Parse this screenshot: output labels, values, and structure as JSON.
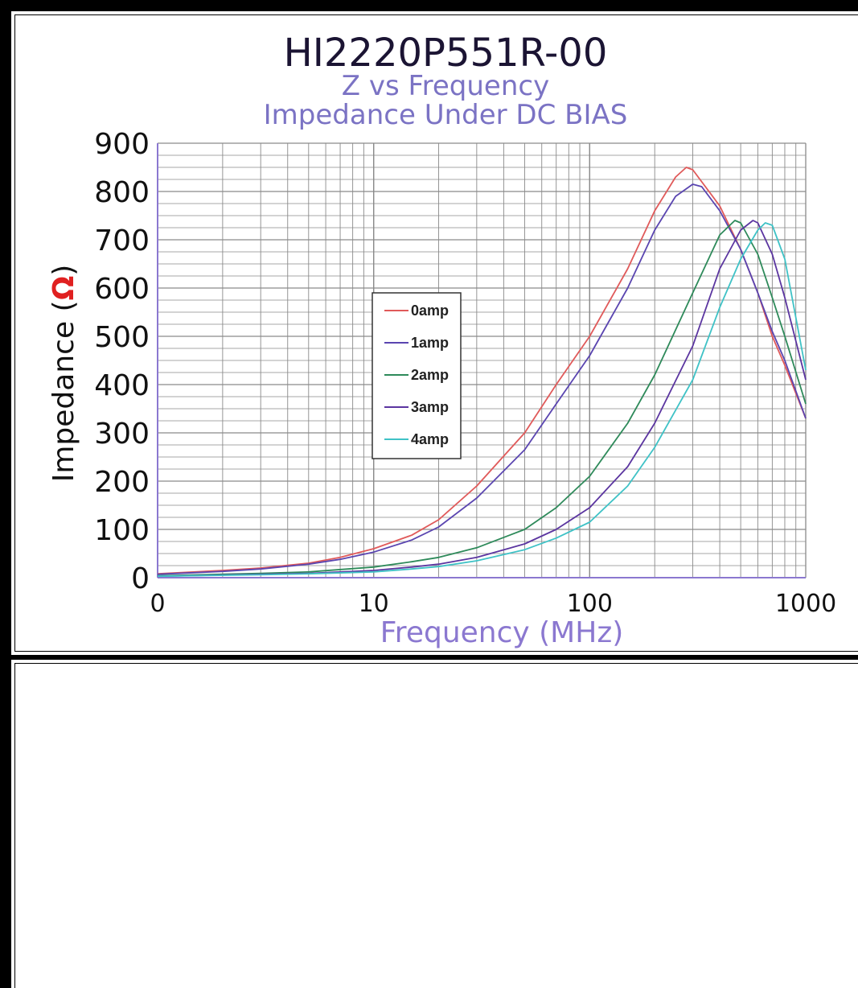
{
  "chart_data": {
    "type": "line",
    "title": "HI2220P551R-00",
    "subtitle_1": "Z vs Frequency",
    "subtitle_2": "Impedance Under DC BIAS",
    "xlabel": "Frequency (MHz)",
    "ylabel_prefix": "Impedance (",
    "ylabel_symbol": "Ω",
    "ylabel_suffix": ")",
    "x_scale": "log",
    "xlim": [
      1,
      1000
    ],
    "ylim": [
      0,
      900
    ],
    "x_tick_labels": [
      "0",
      "10",
      "100",
      "1000"
    ],
    "y_tick_labels": [
      "0",
      "100",
      "200",
      "300",
      "400",
      "500",
      "600",
      "700",
      "800",
      "900"
    ],
    "grid": true,
    "legend_position": "center-left",
    "series": [
      {
        "name": "0amp",
        "color": "#e05a5a",
        "x": [
          1,
          2,
          3,
          5,
          7,
          10,
          15,
          20,
          30,
          50,
          70,
          100,
          150,
          200,
          250,
          280,
          300,
          400,
          500,
          600,
          700,
          800,
          1000
        ],
        "y": [
          8,
          15,
          20,
          30,
          42,
          60,
          88,
          120,
          190,
          300,
          400,
          500,
          640,
          760,
          830,
          850,
          845,
          770,
          680,
          590,
          500,
          440,
          330
        ]
      },
      {
        "name": "1amp",
        "color": "#5a45b0",
        "x": [
          1,
          2,
          3,
          5,
          7,
          10,
          15,
          20,
          30,
          50,
          70,
          100,
          150,
          200,
          250,
          300,
          330,
          400,
          500,
          600,
          700,
          800,
          1000
        ],
        "y": [
          7,
          13,
          18,
          28,
          38,
          53,
          78,
          105,
          165,
          265,
          360,
          460,
          600,
          720,
          790,
          815,
          810,
          760,
          680,
          590,
          510,
          450,
          330
        ]
      },
      {
        "name": "2amp",
        "color": "#2e8a5a",
        "x": [
          1,
          3,
          5,
          10,
          15,
          20,
          30,
          50,
          70,
          100,
          150,
          200,
          300,
          400,
          470,
          500,
          600,
          700,
          800,
          1000
        ],
        "y": [
          4,
          9,
          12,
          22,
          33,
          42,
          62,
          100,
          145,
          210,
          320,
          420,
          590,
          710,
          740,
          735,
          670,
          580,
          500,
          360
        ]
      },
      {
        "name": "3amp",
        "color": "#5b35a0",
        "x": [
          1,
          3,
          5,
          10,
          15,
          20,
          30,
          50,
          70,
          100,
          150,
          200,
          300,
          400,
          500,
          570,
          600,
          700,
          800,
          1000
        ],
        "y": [
          3,
          7,
          9,
          15,
          22,
          28,
          42,
          70,
          100,
          145,
          230,
          320,
          480,
          640,
          720,
          740,
          735,
          670,
          580,
          410
        ]
      },
      {
        "name": "4amp",
        "color": "#3fc2c6",
        "x": [
          1,
          3,
          5,
          10,
          15,
          20,
          30,
          50,
          70,
          100,
          150,
          200,
          300,
          400,
          500,
          600,
          650,
          700,
          800,
          1000
        ],
        "y": [
          3,
          6,
          8,
          12,
          18,
          23,
          35,
          58,
          82,
          115,
          190,
          270,
          410,
          560,
          660,
          720,
          735,
          730,
          660,
          430
        ]
      }
    ]
  }
}
